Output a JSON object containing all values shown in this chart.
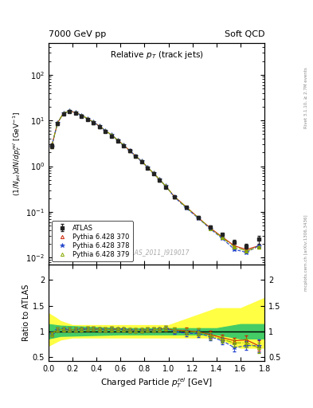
{
  "header_left": "7000 GeV pp",
  "header_right": "Soft QCD",
  "right_label_top": "Rivet 3.1.10, ≥ 2.7M events",
  "right_label_bot": "mcplots.cern.ch [arXiv:1306.3436]",
  "watermark": "ATLAS_2011_I919017",
  "xlabel": "Charged Particle $p_T^{rel}$ [GeV]",
  "ylabel": "$(1/N_{jet})dN/dp_T^{rel}$ [GeV$^{-1}$]",
  "ylabel_ratio": "Ratio to ATLAS",
  "xlim": [
    0.0,
    1.8
  ],
  "ylim_main": [
    0.007,
    500
  ],
  "ylim_ratio": [
    0.42,
    2.3
  ],
  "ratio_yticks": [
    0.5,
    1.0,
    1.5,
    2.0
  ],
  "atlas_x": [
    0.025,
    0.075,
    0.125,
    0.175,
    0.225,
    0.275,
    0.325,
    0.375,
    0.425,
    0.475,
    0.525,
    0.575,
    0.625,
    0.675,
    0.725,
    0.775,
    0.825,
    0.875,
    0.925,
    0.975,
    1.05,
    1.15,
    1.25,
    1.35,
    1.45,
    1.55,
    1.65,
    1.75
  ],
  "atlas_y": [
    2.8,
    8.5,
    14.0,
    15.5,
    14.5,
    12.5,
    10.5,
    8.8,
    7.2,
    5.8,
    4.6,
    3.6,
    2.8,
    2.15,
    1.65,
    1.25,
    0.92,
    0.68,
    0.49,
    0.35,
    0.21,
    0.125,
    0.075,
    0.047,
    0.032,
    0.022,
    0.018,
    0.025
  ],
  "atlas_yerr_lo": [
    0.3,
    0.5,
    0.7,
    0.7,
    0.7,
    0.6,
    0.5,
    0.4,
    0.35,
    0.28,
    0.22,
    0.17,
    0.13,
    0.1,
    0.08,
    0.06,
    0.04,
    0.03,
    0.025,
    0.018,
    0.012,
    0.008,
    0.005,
    0.003,
    0.002,
    0.002,
    0.002,
    0.005
  ],
  "atlas_yerr_hi": [
    0.3,
    0.5,
    0.7,
    0.7,
    0.7,
    0.6,
    0.5,
    0.4,
    0.35,
    0.28,
    0.22,
    0.17,
    0.13,
    0.1,
    0.08,
    0.06,
    0.04,
    0.03,
    0.025,
    0.018,
    0.012,
    0.008,
    0.005,
    0.003,
    0.002,
    0.002,
    0.002,
    0.005
  ],
  "py370_x": [
    0.025,
    0.075,
    0.125,
    0.175,
    0.225,
    0.275,
    0.325,
    0.375,
    0.425,
    0.475,
    0.525,
    0.575,
    0.625,
    0.675,
    0.725,
    0.775,
    0.825,
    0.875,
    0.925,
    0.975,
    1.05,
    1.15,
    1.25,
    1.35,
    1.45,
    1.55,
    1.65,
    1.75
  ],
  "py370_y": [
    2.65,
    8.8,
    14.5,
    16.0,
    15.0,
    13.0,
    11.0,
    9.2,
    7.5,
    6.0,
    4.8,
    3.75,
    2.9,
    2.2,
    1.68,
    1.28,
    0.95,
    0.7,
    0.51,
    0.37,
    0.215,
    0.127,
    0.074,
    0.044,
    0.028,
    0.018,
    0.015,
    0.018
  ],
  "py370_yerr": [
    0.05,
    0.08,
    0.1,
    0.1,
    0.1,
    0.09,
    0.08,
    0.06,
    0.05,
    0.04,
    0.035,
    0.028,
    0.02,
    0.016,
    0.012,
    0.009,
    0.007,
    0.005,
    0.004,
    0.003,
    0.002,
    0.0015,
    0.001,
    0.0008,
    0.0005,
    0.0005,
    0.0005,
    0.001
  ],
  "py378_x": [
    0.025,
    0.075,
    0.125,
    0.175,
    0.225,
    0.275,
    0.325,
    0.375,
    0.425,
    0.475,
    0.525,
    0.575,
    0.625,
    0.675,
    0.725,
    0.775,
    0.825,
    0.875,
    0.925,
    0.975,
    1.05,
    1.15,
    1.25,
    1.35,
    1.45,
    1.55,
    1.65,
    1.75
  ],
  "py378_y": [
    2.65,
    8.8,
    14.5,
    16.0,
    15.0,
    13.0,
    11.0,
    9.2,
    7.5,
    6.0,
    4.8,
    3.75,
    2.9,
    2.2,
    1.68,
    1.28,
    0.95,
    0.7,
    0.51,
    0.37,
    0.21,
    0.12,
    0.072,
    0.042,
    0.026,
    0.015,
    0.013,
    0.018
  ],
  "py378_yerr": [
    0.05,
    0.08,
    0.1,
    0.1,
    0.1,
    0.09,
    0.08,
    0.06,
    0.05,
    0.04,
    0.035,
    0.028,
    0.02,
    0.016,
    0.012,
    0.009,
    0.007,
    0.005,
    0.004,
    0.003,
    0.002,
    0.0015,
    0.001,
    0.0008,
    0.0005,
    0.0005,
    0.0005,
    0.001
  ],
  "py379_x": [
    0.025,
    0.075,
    0.125,
    0.175,
    0.225,
    0.275,
    0.325,
    0.375,
    0.425,
    0.475,
    0.525,
    0.575,
    0.625,
    0.675,
    0.725,
    0.775,
    0.825,
    0.875,
    0.925,
    0.975,
    1.05,
    1.15,
    1.25,
    1.35,
    1.45,
    1.55,
    1.65,
    1.75
  ],
  "py379_y": [
    2.65,
    8.8,
    14.5,
    16.0,
    15.0,
    13.0,
    11.0,
    9.2,
    7.5,
    6.0,
    4.8,
    3.75,
    2.9,
    2.2,
    1.68,
    1.28,
    0.95,
    0.7,
    0.51,
    0.37,
    0.215,
    0.125,
    0.074,
    0.043,
    0.027,
    0.017,
    0.014,
    0.017
  ],
  "py379_yerr": [
    0.05,
    0.08,
    0.1,
    0.1,
    0.1,
    0.09,
    0.08,
    0.06,
    0.05,
    0.04,
    0.035,
    0.028,
    0.02,
    0.016,
    0.012,
    0.009,
    0.007,
    0.005,
    0.004,
    0.003,
    0.002,
    0.0015,
    0.001,
    0.0008,
    0.0005,
    0.0005,
    0.0005,
    0.001
  ],
  "ratio370_y": [
    0.946,
    1.035,
    1.036,
    1.032,
    1.034,
    1.04,
    1.048,
    1.045,
    1.042,
    1.034,
    1.043,
    1.042,
    1.036,
    1.023,
    1.018,
    1.024,
    1.033,
    1.029,
    1.041,
    1.057,
    1.024,
    1.016,
    0.987,
    0.936,
    0.875,
    0.818,
    0.833,
    0.72
  ],
  "ratio378_y": [
    0.946,
    1.035,
    1.036,
    1.032,
    1.034,
    1.04,
    1.048,
    1.045,
    1.042,
    1.034,
    1.043,
    1.042,
    1.036,
    1.023,
    1.018,
    1.024,
    1.033,
    1.029,
    1.041,
    1.057,
    1.0,
    0.96,
    0.96,
    0.894,
    0.813,
    0.682,
    0.722,
    0.72
  ],
  "ratio379_y": [
    0.946,
    1.035,
    1.036,
    1.032,
    1.034,
    1.04,
    1.048,
    1.045,
    1.042,
    1.034,
    1.043,
    1.042,
    1.036,
    1.023,
    1.018,
    1.024,
    1.033,
    1.029,
    1.041,
    1.057,
    1.024,
    1.0,
    0.987,
    0.915,
    0.844,
    0.773,
    0.778,
    0.68
  ],
  "ratio370_yerr": [
    0.04,
    0.04,
    0.04,
    0.04,
    0.04,
    0.04,
    0.04,
    0.04,
    0.04,
    0.04,
    0.04,
    0.04,
    0.04,
    0.04,
    0.04,
    0.04,
    0.04,
    0.04,
    0.04,
    0.05,
    0.05,
    0.06,
    0.07,
    0.07,
    0.06,
    0.06,
    0.08,
    0.1
  ],
  "ratio378_yerr": [
    0.04,
    0.04,
    0.04,
    0.04,
    0.04,
    0.04,
    0.04,
    0.04,
    0.04,
    0.04,
    0.04,
    0.04,
    0.04,
    0.04,
    0.04,
    0.04,
    0.04,
    0.04,
    0.04,
    0.05,
    0.05,
    0.06,
    0.07,
    0.07,
    0.06,
    0.08,
    0.09,
    0.12
  ],
  "ratio379_yerr": [
    0.04,
    0.04,
    0.04,
    0.04,
    0.04,
    0.04,
    0.04,
    0.04,
    0.04,
    0.04,
    0.04,
    0.04,
    0.04,
    0.04,
    0.04,
    0.04,
    0.04,
    0.04,
    0.04,
    0.05,
    0.05,
    0.06,
    0.07,
    0.07,
    0.06,
    0.07,
    0.08,
    0.1
  ],
  "band_yellow_x": [
    0.0,
    0.05,
    0.1,
    0.2,
    0.6,
    1.0,
    1.4,
    1.6,
    1.8
  ],
  "band_yellow_lo": [
    0.72,
    0.78,
    0.84,
    0.88,
    0.88,
    0.88,
    0.88,
    0.68,
    0.68
  ],
  "band_yellow_hi": [
    1.35,
    1.28,
    1.2,
    1.12,
    1.12,
    1.12,
    1.45,
    1.45,
    1.65
  ],
  "band_green_x": [
    0.0,
    0.1,
    0.6,
    1.0,
    1.4,
    1.6,
    1.8
  ],
  "band_green_lo": [
    0.86,
    0.91,
    0.94,
    0.94,
    0.94,
    0.86,
    0.86
  ],
  "band_green_hi": [
    1.14,
    1.11,
    1.06,
    1.06,
    1.06,
    1.14,
    1.14
  ],
  "color_atlas": "#222222",
  "color_py370": "#cc2200",
  "color_py378": "#2244cc",
  "color_py379": "#88aa00",
  "color_yellow": "#ffff44",
  "color_green": "#44cc66",
  "bg_color": "#ffffff"
}
